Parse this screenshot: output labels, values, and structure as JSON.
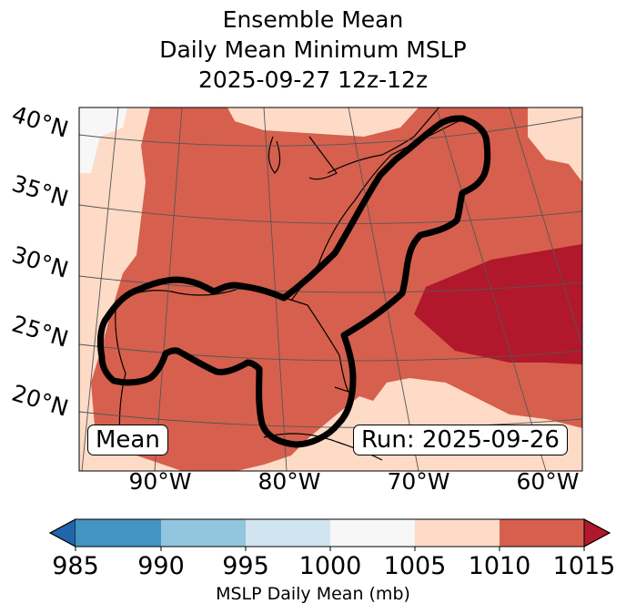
{
  "title": [
    "Ensemble Mean",
    "Daily Mean Minimum MSLP",
    "2025-09-27 12z-12z"
  ],
  "lat_labels": [
    "40°N",
    "35°N",
    "30°N",
    "25°N",
    "20°N"
  ],
  "lon_labels": [
    "90°W",
    "80°W",
    "70°W",
    "60°W"
  ],
  "annotations": {
    "left": "Mean",
    "right": "Run: 2025-09-26"
  },
  "colorbar": {
    "label": "MSLP Daily Mean (mb)",
    "ticks": [
      "985",
      "990",
      "995",
      "1000",
      "1005",
      "1010",
      "1015"
    ],
    "colors": [
      "#4393c3",
      "#92c5de",
      "#d1e5f0",
      "#f7f7f7",
      "#fddbc7",
      "#d6604d"
    ],
    "under_color": "#2166ac",
    "over_color": "#b2182b"
  },
  "map_colors": {
    "background": "#fddbc7",
    "main": "#d6604d",
    "high": "#b2182b",
    "low": "#f7f7f7"
  }
}
